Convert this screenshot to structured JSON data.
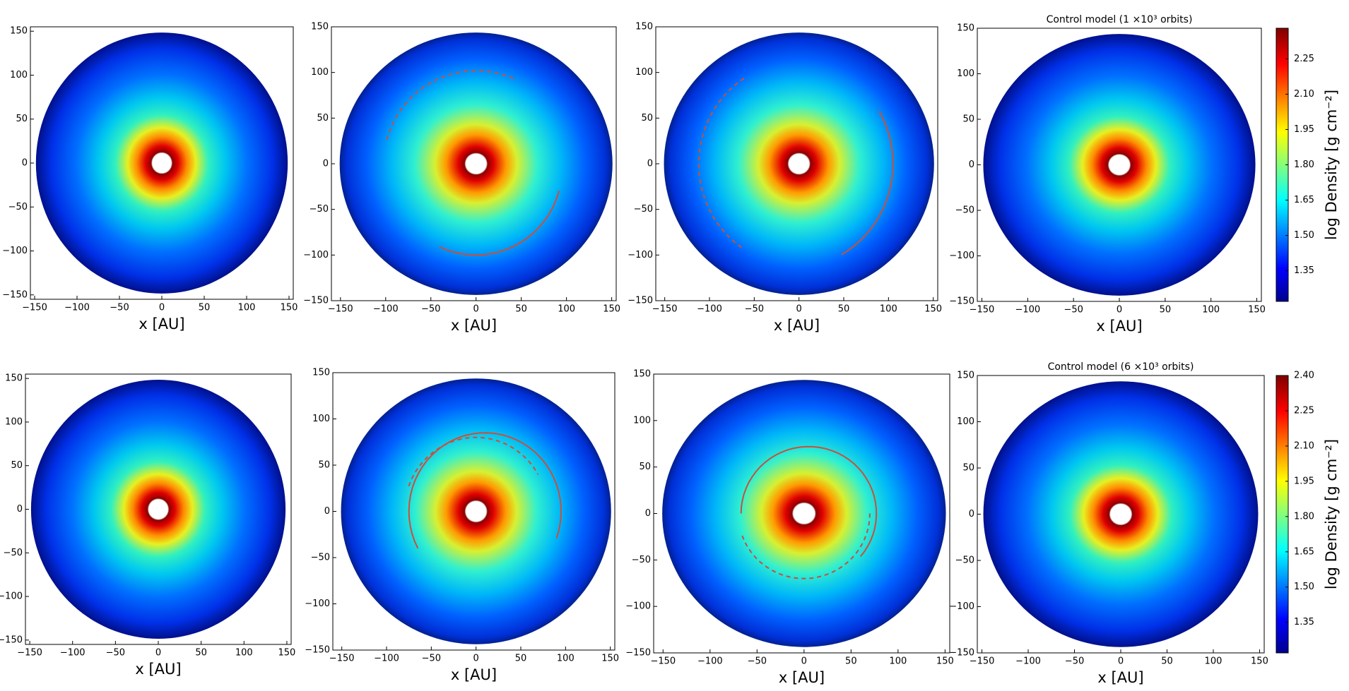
{
  "chart_data": [
    {
      "type": "disk",
      "xlabel": "x [AU]",
      "xlim": [
        -155,
        155
      ],
      "ylim": [
        -155,
        155
      ],
      "xticks": [
        {
          "value": -150,
          "label": "−150"
        },
        {
          "value": -100,
          "label": "−100"
        },
        {
          "value": -50,
          "label": "−50"
        },
        0,
        50,
        100,
        150
      ],
      "yticks": [
        {
          "value": -150,
          "label": "−150"
        },
        {
          "value": -100,
          "label": "−100"
        },
        {
          "value": -50,
          "label": "−50"
        },
        0,
        50,
        100,
        150
      ]
    },
    {
      "type": "disk",
      "xlabel": "x [AU]",
      "xlim": [
        -160,
        155
      ],
      "ylim": [
        -150,
        150
      ],
      "xticks": [
        {
          "value": -150,
          "label": "−150"
        },
        {
          "value": -100,
          "label": "−100"
        },
        {
          "value": -50,
          "label": "−50"
        },
        0,
        50,
        100,
        150
      ],
      "yticks": [
        {
          "value": -150,
          "label": "−150"
        },
        {
          "value": -100,
          "label": "−100"
        },
        {
          "value": -50,
          "label": "−50"
        },
        0,
        50,
        100,
        150
      ]
    },
    {
      "type": "disk",
      "xlabel": "x [AU]",
      "xlim": [
        -160,
        155
      ],
      "ylim": [
        -150,
        150
      ],
      "xticks": [
        {
          "value": -150,
          "label": "−150"
        },
        {
          "value": -100,
          "label": "−100"
        },
        {
          "value": -50,
          "label": "−50"
        },
        0,
        50,
        100,
        150
      ],
      "yticks": [
        {
          "value": -150,
          "label": "−150"
        },
        {
          "value": -100,
          "label": "−100"
        },
        {
          "value": -50,
          "label": "−50"
        },
        0,
        50,
        100,
        150
      ]
    },
    {
      "type": "disk",
      "title": "Control model (1 ×10³  orbits)",
      "xlabel": "x [AU]",
      "xlim": [
        -155,
        155
      ],
      "ylim": [
        -150,
        150
      ],
      "xticks": [
        {
          "value": -150,
          "label": "−150"
        },
        {
          "value": -100,
          "label": "−100"
        },
        {
          "value": -50,
          "label": "−50"
        },
        0,
        50,
        100,
        150
      ],
      "yticks": [
        {
          "value": -150,
          "label": "−150"
        },
        {
          "value": -100,
          "label": "−100"
        },
        {
          "value": -50,
          "label": "−50"
        },
        0,
        50,
        100,
        150
      ],
      "colorbar": {
        "label": "log Density [g cm⁻²]",
        "lim": [
          1.22,
          2.38
        ],
        "ticks": [
          1.35,
          {
            "value": 1.5,
            "label": "1.50"
          },
          1.65,
          {
            "value": 1.8,
            "label": "1.80"
          },
          1.95,
          {
            "value": 2.1,
            "label": "2.10"
          },
          2.25
        ]
      }
    },
    {
      "type": "disk",
      "xlabel": "x [AU]",
      "xlim": [
        -155,
        155
      ],
      "ylim": [
        -155,
        155
      ],
      "xticks": [
        {
          "value": -150,
          "label": "−150"
        },
        {
          "value": -100,
          "label": "−100"
        },
        {
          "value": -50,
          "label": "−50"
        },
        0,
        50,
        100,
        150
      ],
      "yticks": [
        {
          "value": -150,
          "label": "−150"
        },
        {
          "value": -100,
          "label": "−100"
        },
        {
          "value": -50,
          "label": "−50"
        },
        0,
        50,
        100,
        150
      ]
    },
    {
      "type": "disk",
      "xlabel": "x [AU]",
      "xlim": [
        -160,
        155
      ],
      "ylim": [
        -150,
        150
      ],
      "xticks": [
        {
          "value": -150,
          "label": "−150"
        },
        {
          "value": -100,
          "label": "−100"
        },
        {
          "value": -50,
          "label": "−50"
        },
        0,
        50,
        100,
        150
      ],
      "yticks": [
        {
          "value": -150,
          "label": "−150"
        },
        {
          "value": -100,
          "label": "−100"
        },
        {
          "value": -50,
          "label": "−50"
        },
        0,
        50,
        100,
        150
      ]
    },
    {
      "type": "disk",
      "xlabel": "x [AU]",
      "xlim": [
        -160,
        155
      ],
      "ylim": [
        -150,
        150
      ],
      "xticks": [
        {
          "value": -150,
          "label": "−150"
        },
        {
          "value": -100,
          "label": "−100"
        },
        {
          "value": -50,
          "label": "−50"
        },
        0,
        50,
        100,
        150
      ],
      "yticks": [
        {
          "value": -150,
          "label": "−150"
        },
        {
          "value": -100,
          "label": "−100"
        },
        {
          "value": -50,
          "label": "−50"
        },
        0,
        50,
        100,
        150
      ]
    },
    {
      "type": "disk",
      "title": "Control model (6 ×10³  orbits)",
      "xlabel": "x [AU]",
      "xlim": [
        -155,
        155
      ],
      "ylim": [
        -150,
        150
      ],
      "xticks": [
        {
          "value": -150,
          "label": "−150"
        },
        {
          "value": -100,
          "label": "−100"
        },
        {
          "value": -50,
          "label": "−50"
        },
        0,
        50,
        100,
        150
      ],
      "yticks": [
        {
          "value": -150,
          "label": "−150"
        },
        {
          "value": -100,
          "label": "−100"
        },
        {
          "value": -50,
          "label": "−50"
        },
        0,
        50,
        100,
        150
      ],
      "colorbar": {
        "label": "log Density [g cm⁻²]",
        "lim": [
          1.22,
          2.4
        ],
        "ticks": [
          1.35,
          {
            "value": 1.5,
            "label": "1.50"
          },
          1.65,
          {
            "value": 1.8,
            "label": "1.80"
          },
          1.95,
          {
            "value": 2.1,
            "label": "2.10"
          },
          2.25,
          {
            "value": 2.4,
            "label": "2.40"
          }
        ]
      }
    }
  ]
}
